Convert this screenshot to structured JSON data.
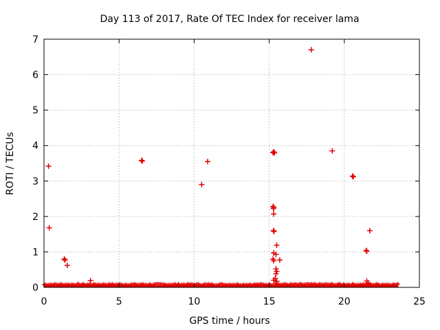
{
  "chart_data": {
    "type": "scatter",
    "title": "Day 113 of 2017, Rate Of TEC Index for receiver lama",
    "xlabel": "GPS time / hours",
    "ylabel": "ROTI / TECUs",
    "xlim": [
      0,
      25
    ],
    "ylim": [
      0,
      7
    ],
    "xticks": [
      "0",
      "5",
      "10",
      "15",
      "20",
      "25"
    ],
    "yticks": [
      "0",
      "1",
      "2",
      "3",
      "4",
      "5",
      "6",
      "7"
    ],
    "grid": true,
    "marker": "+",
    "color": "#e00000",
    "baseline_band": {
      "x_start": 0,
      "x_end": 23.6,
      "y_max": 0.06
    },
    "points": [
      {
        "x": 0.3,
        "y": 3.42
      },
      {
        "x": 0.35,
        "y": 1.68
      },
      {
        "x": 1.35,
        "y": 0.8
      },
      {
        "x": 1.4,
        "y": 0.77
      },
      {
        "x": 1.55,
        "y": 0.62
      },
      {
        "x": 3.1,
        "y": 0.19
      },
      {
        "x": 6.5,
        "y": 3.58
      },
      {
        "x": 6.55,
        "y": 3.56
      },
      {
        "x": 10.5,
        "y": 2.9
      },
      {
        "x": 10.9,
        "y": 3.55
      },
      {
        "x": 15.25,
        "y": 3.8
      },
      {
        "x": 15.3,
        "y": 3.82
      },
      {
        "x": 15.35,
        "y": 3.79
      },
      {
        "x": 15.25,
        "y": 2.28
      },
      {
        "x": 15.3,
        "y": 2.26
      },
      {
        "x": 15.28,
        "y": 2.22
      },
      {
        "x": 15.3,
        "y": 2.07
      },
      {
        "x": 15.28,
        "y": 1.6
      },
      {
        "x": 15.32,
        "y": 1.58
      },
      {
        "x": 15.5,
        "y": 1.19
      },
      {
        "x": 15.3,
        "y": 0.97
      },
      {
        "x": 15.45,
        "y": 0.93
      },
      {
        "x": 15.25,
        "y": 0.8
      },
      {
        "x": 15.7,
        "y": 0.77
      },
      {
        "x": 15.3,
        "y": 0.75
      },
      {
        "x": 15.45,
        "y": 0.52
      },
      {
        "x": 15.5,
        "y": 0.45
      },
      {
        "x": 15.45,
        "y": 0.38
      },
      {
        "x": 15.4,
        "y": 0.25
      },
      {
        "x": 15.3,
        "y": 0.2
      },
      {
        "x": 15.5,
        "y": 0.17
      },
      {
        "x": 15.45,
        "y": 0.12
      },
      {
        "x": 17.8,
        "y": 6.7
      },
      {
        "x": 19.2,
        "y": 3.85
      },
      {
        "x": 20.55,
        "y": 3.14
      },
      {
        "x": 20.6,
        "y": 3.12
      },
      {
        "x": 21.45,
        "y": 1.04
      },
      {
        "x": 21.5,
        "y": 1.02
      },
      {
        "x": 21.7,
        "y": 1.6
      },
      {
        "x": 21.5,
        "y": 0.18
      },
      {
        "x": 21.6,
        "y": 0.12
      }
    ]
  }
}
